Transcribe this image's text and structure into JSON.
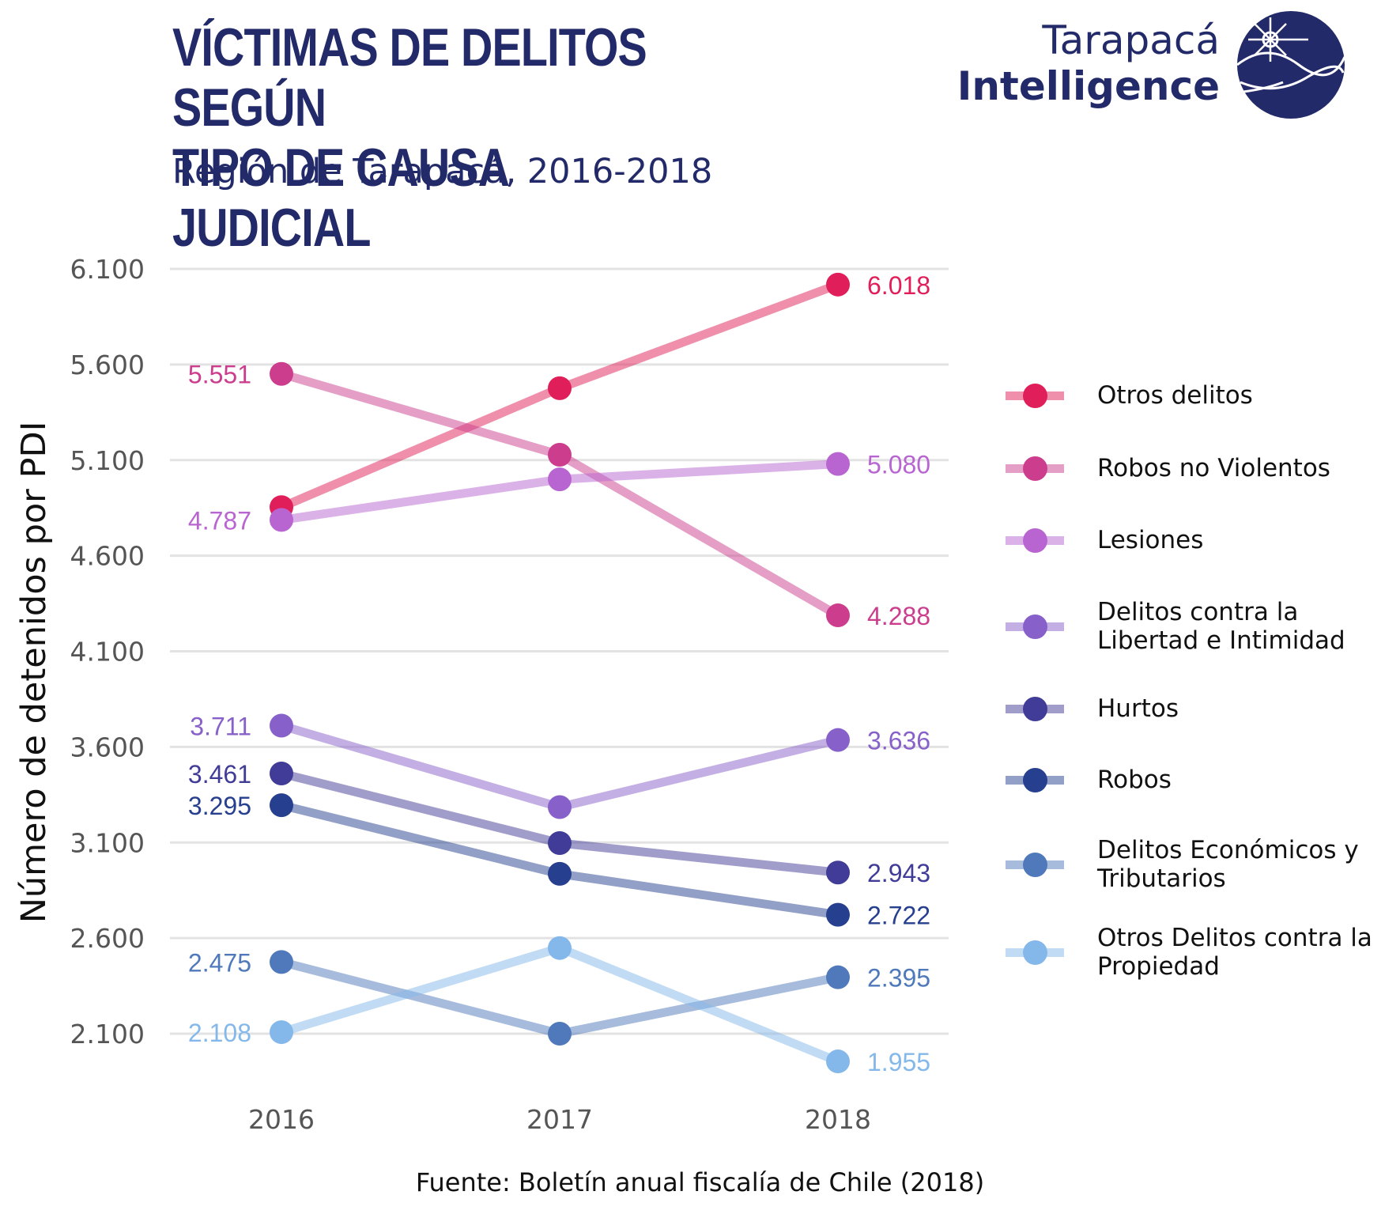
{
  "header": {
    "title_line1": "VÍCTIMAS DE DELITOS SEGÚN",
    "title_line2": "TIPO DE CAUSA JUDICIAL",
    "subtitle": "Región de Tarapacá, 2016-2018"
  },
  "logo": {
    "line1": "Tarapacá",
    "line2": "Intelligence",
    "color": "#232a69"
  },
  "source": "Fuente: Boletín anual fiscalía de Chile (2018)",
  "chart_data": {
    "type": "line",
    "title": "VÍCTIMAS DE DELITOS SEGÚN TIPO DE CAUSA JUDICIAL",
    "subtitle": "Región de Tarapacá, 2016-2018",
    "xlabel": "",
    "ylabel": "Número de detenidos por PDI",
    "x": [
      "2016",
      "2017",
      "2018"
    ],
    "ylim": [
      1860,
      6180
    ],
    "yticks": [
      2100,
      2600,
      3100,
      3600,
      4100,
      4600,
      5100,
      5600,
      6100
    ],
    "ytick_labels": [
      "2.100",
      "2.600",
      "3.100",
      "3.600",
      "4.100",
      "4.600",
      "5.100",
      "5.600",
      "6.100"
    ],
    "grid": true,
    "legend_position": "right",
    "series": [
      {
        "name": "Otros delitos",
        "values": [
          4854,
          5476,
          6018
        ],
        "color": "#e01f5a",
        "labels": [
          "",
          "",
          "6.018"
        ]
      },
      {
        "name": "Robos no Violentos",
        "values": [
          5551,
          5128,
          4288
        ],
        "color": "#cc3d8e",
        "labels": [
          "5.551",
          "",
          "4.288"
        ]
      },
      {
        "name": "Lesiones",
        "values": [
          4787,
          4999,
          5080
        ],
        "color": "#b865d2",
        "labels": [
          "4.787",
          "",
          "5.080"
        ]
      },
      {
        "name": "Delitos contra la\nLibertad e Intimidad",
        "values": [
          3711,
          3285,
          3636
        ],
        "color": "#8760c9",
        "labels": [
          "3.711",
          "",
          "3.636"
        ]
      },
      {
        "name": "Hurtos",
        "values": [
          3461,
          3097,
          2943
        ],
        "color": "#413c97",
        "labels": [
          "3.461",
          "",
          "2.943"
        ]
      },
      {
        "name": "Robos",
        "values": [
          3295,
          2936,
          2722
        ],
        "color": "#263f8e",
        "labels": [
          "3.295",
          "",
          "2.722"
        ]
      },
      {
        "name": "Delitos Económicos y\nTributarios",
        "values": [
          2475,
          2100,
          2395
        ],
        "color": "#4f79ba",
        "labels": [
          "2.475",
          "",
          "2.395"
        ]
      },
      {
        "name": "Otros Delitos contra la\nPropiedad",
        "values": [
          2108,
          2548,
          1955
        ],
        "color": "#84b8ea",
        "labels": [
          "2.108",
          "",
          "1.955"
        ]
      }
    ]
  }
}
